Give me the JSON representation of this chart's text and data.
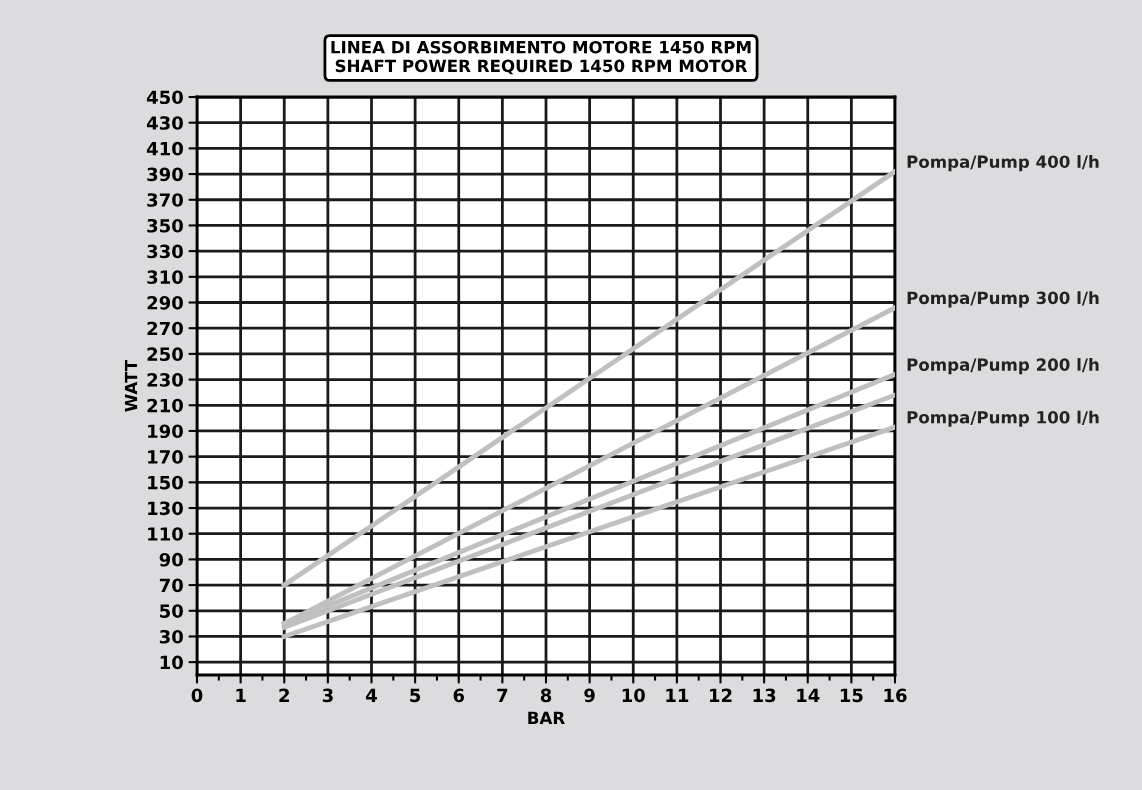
{
  "chart_data": {
    "type": "line",
    "title": "LINEA DI ASSORBIMENTO MOTORE 1450 RPM\nSHAFT POWER REQUIRED 1450 RPM MOTOR",
    "xlabel": "BAR",
    "ylabel": "WATT",
    "x": [
      2,
      16
    ],
    "series": [
      {
        "name": "Pompa/Pump 400 l/h",
        "color": "#c0c0c2",
        "values": [
          70,
          392
        ]
      },
      {
        "name": "Pompa/Pump 300 l/h",
        "color": "#c0c0c2",
        "values": [
          40,
          286
        ]
      },
      {
        "name": "Pompa/Pump 200 l/h",
        "color": "#c0c0c2",
        "values": [
          40,
          234
        ]
      },
      {
        "color": "#c0c0c2",
        "values": [
          37,
          218
        ]
      },
      {
        "name": "Pompa/Pump 100 l/h",
        "color": "#c0c0c2",
        "values": [
          30,
          193
        ]
      }
    ],
    "xlim": [
      0,
      16
    ],
    "xticks": [
      0,
      1,
      2,
      3,
      4,
      5,
      6,
      7,
      8,
      9,
      10,
      11,
      12,
      13,
      14,
      15,
      16
    ],
    "ylim": [
      0,
      450
    ],
    "yticks": [
      10,
      30,
      50,
      70,
      90,
      110,
      130,
      150,
      170,
      190,
      210,
      230,
      250,
      270,
      290,
      310,
      330,
      350,
      370,
      390,
      410,
      430,
      450
    ],
    "grid": true,
    "legend": false,
    "marker": "none",
    "line_style": "solid"
  }
}
